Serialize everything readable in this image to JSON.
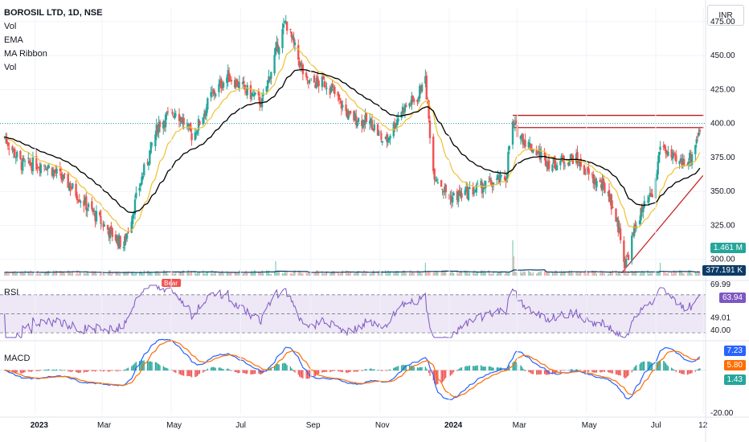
{
  "header": {
    "symbol_line": "BOROSIL LTD, 1D, NSE",
    "indicators": [
      "Vol",
      "EMA",
      "MA Ribbon",
      "Vol"
    ],
    "currency_button": "INR"
  },
  "colors": {
    "up": "#26a69a",
    "down": "#ef5350",
    "ema": "#f0c030",
    "ribbon": "#000000",
    "rsi_line": "#7e57c2",
    "rsi_band": "#ede7f6",
    "macd_line": "#2962ff",
    "signal_line": "#ff6d00",
    "resistance": "#b71c1c",
    "support": "#c62828",
    "vol_ma": "#0d3b66"
  },
  "chart_data": [
    {
      "type": "candlestick",
      "title": "BOROSIL LTD, 1D, NSE",
      "ylim": [
        288,
        485
      ],
      "y_ticks": [
        "475.00",
        "450.00",
        "425.00",
        "400.00",
        "375.00",
        "350.00",
        "325.00",
        "300.00"
      ],
      "x_ticks": [
        "2023",
        "Mar",
        "May",
        "Jul",
        "Sep",
        "Nov",
        "2024",
        "Mar",
        "May",
        "Jul",
        "12"
      ],
      "anchor_closes": [
        [
          "2022-12-05",
          390
        ],
        [
          "2022-12-20",
          370
        ],
        [
          "2023-01-10",
          370
        ],
        [
          "2023-01-31",
          355
        ],
        [
          "2023-02-20",
          335
        ],
        [
          "2023-03-08",
          320
        ],
        [
          "2023-03-20",
          310
        ],
        [
          "2023-04-05",
          360
        ],
        [
          "2023-04-20",
          400
        ],
        [
          "2023-05-05",
          410
        ],
        [
          "2023-05-20",
          390
        ],
        [
          "2023-06-05",
          420
        ],
        [
          "2023-06-20",
          435
        ],
        [
          "2023-07-05",
          425
        ],
        [
          "2023-07-20",
          415
        ],
        [
          "2023-08-02",
          455
        ],
        [
          "2023-08-10",
          475
        ],
        [
          "2023-08-28",
          430
        ],
        [
          "2023-09-15",
          430
        ],
        [
          "2023-10-05",
          405
        ],
        [
          "2023-10-25",
          400
        ],
        [
          "2023-11-05",
          385
        ],
        [
          "2023-11-20",
          410
        ],
        [
          "2023-12-05",
          420
        ],
        [
          "2023-12-10",
          440
        ],
        [
          "2023-12-18",
          365
        ],
        [
          "2024-01-01",
          345
        ],
        [
          "2024-01-20",
          350
        ],
        [
          "2024-02-05",
          355
        ],
        [
          "2024-02-20",
          360
        ],
        [
          "2024-02-25",
          400
        ],
        [
          "2024-03-10",
          385
        ],
        [
          "2024-03-31",
          370
        ],
        [
          "2024-04-20",
          375
        ],
        [
          "2024-05-05",
          360
        ],
        [
          "2024-05-20",
          350
        ],
        [
          "2024-06-01",
          315
        ],
        [
          "2024-06-04",
          295
        ],
        [
          "2024-06-15",
          330
        ],
        [
          "2024-06-30",
          350
        ],
        [
          "2024-07-05",
          385
        ],
        [
          "2024-07-20",
          370
        ],
        [
          "2024-08-01",
          375
        ],
        [
          "2024-08-10",
          400
        ]
      ],
      "ema_label": "EMA",
      "ribbon_label": "MA Ribbon",
      "reference_prices": [
        397,
        406
      ],
      "support_trendline": {
        "from": [
          "2024-06-01",
          290
        ],
        "to": [
          "2024-08-12",
          362
        ]
      },
      "last_price": 400
    },
    {
      "type": "bar",
      "title": "Vol",
      "volume_badge": "1.461 M",
      "volume_ma_badge": "377.191 K"
    },
    {
      "type": "line",
      "title": "RSI",
      "ylim": [
        25,
        80
      ],
      "levels": [
        70,
        50,
        30
      ],
      "tick_labels": [
        "69.99",
        "49.01",
        "40.00"
      ],
      "last_value_badge": "63.94",
      "signal_tag": "Bear"
    },
    {
      "type": "line",
      "title": "MACD",
      "ylim": [
        -25,
        15
      ],
      "tick_labels": [
        "7.23",
        "5.80",
        "1.43",
        "-20.00"
      ],
      "macd_badge": "7.23",
      "signal_badge": "5.80",
      "hist_badge": "1.43"
    }
  ]
}
